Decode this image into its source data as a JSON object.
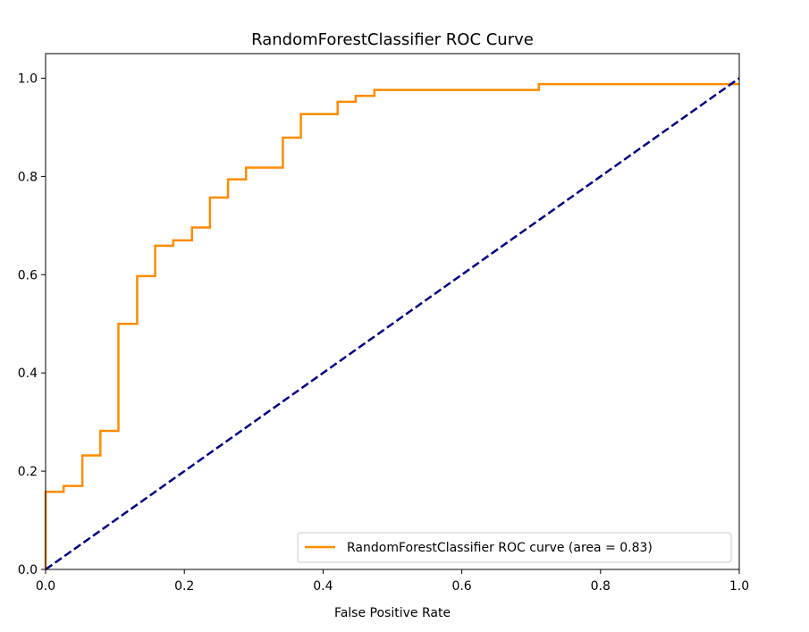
{
  "chart_data": {
    "type": "line",
    "title": "RandomForestClassifier ROC Curve",
    "xlabel": "False Positive Rate",
    "ylabel": "",
    "xlim": [
      0.0,
      1.0
    ],
    "ylim": [
      0.0,
      1.05
    ],
    "grid": false,
    "legend_position": "lower right",
    "x_ticks": [
      "0.0",
      "0.2",
      "0.4",
      "0.6",
      "0.8",
      "1.0"
    ],
    "y_ticks": [
      "0.0",
      "0.2",
      "0.4",
      "0.6",
      "0.8",
      "1.0"
    ],
    "series": [
      {
        "name": "RandomForestClassifier ROC curve (area = 0.83)",
        "color": "#ff8c00",
        "style": "solid",
        "x": [
          0.0,
          0.0,
          0.026,
          0.026,
          0.053,
          0.053,
          0.079,
          0.079,
          0.105,
          0.105,
          0.132,
          0.132,
          0.158,
          0.158,
          0.184,
          0.184,
          0.211,
          0.211,
          0.237,
          0.237,
          0.263,
          0.263,
          0.289,
          0.289,
          0.342,
          0.342,
          0.368,
          0.368,
          0.421,
          0.421,
          0.447,
          0.447,
          0.474,
          0.474,
          0.711,
          0.711,
          1.0
        ],
        "y": [
          0.0,
          0.158,
          0.158,
          0.17,
          0.17,
          0.232,
          0.232,
          0.282,
          0.282,
          0.5,
          0.5,
          0.597,
          0.597,
          0.659,
          0.659,
          0.67,
          0.67,
          0.696,
          0.696,
          0.757,
          0.757,
          0.794,
          0.794,
          0.818,
          0.818,
          0.879,
          0.879,
          0.927,
          0.927,
          0.952,
          0.952,
          0.964,
          0.964,
          0.976,
          0.976,
          0.988,
          0.988
        ]
      },
      {
        "name": "",
        "color": "#000080",
        "style": "dashed",
        "x": [
          0.0,
          1.0
        ],
        "y": [
          0.0,
          1.0
        ]
      }
    ]
  }
}
